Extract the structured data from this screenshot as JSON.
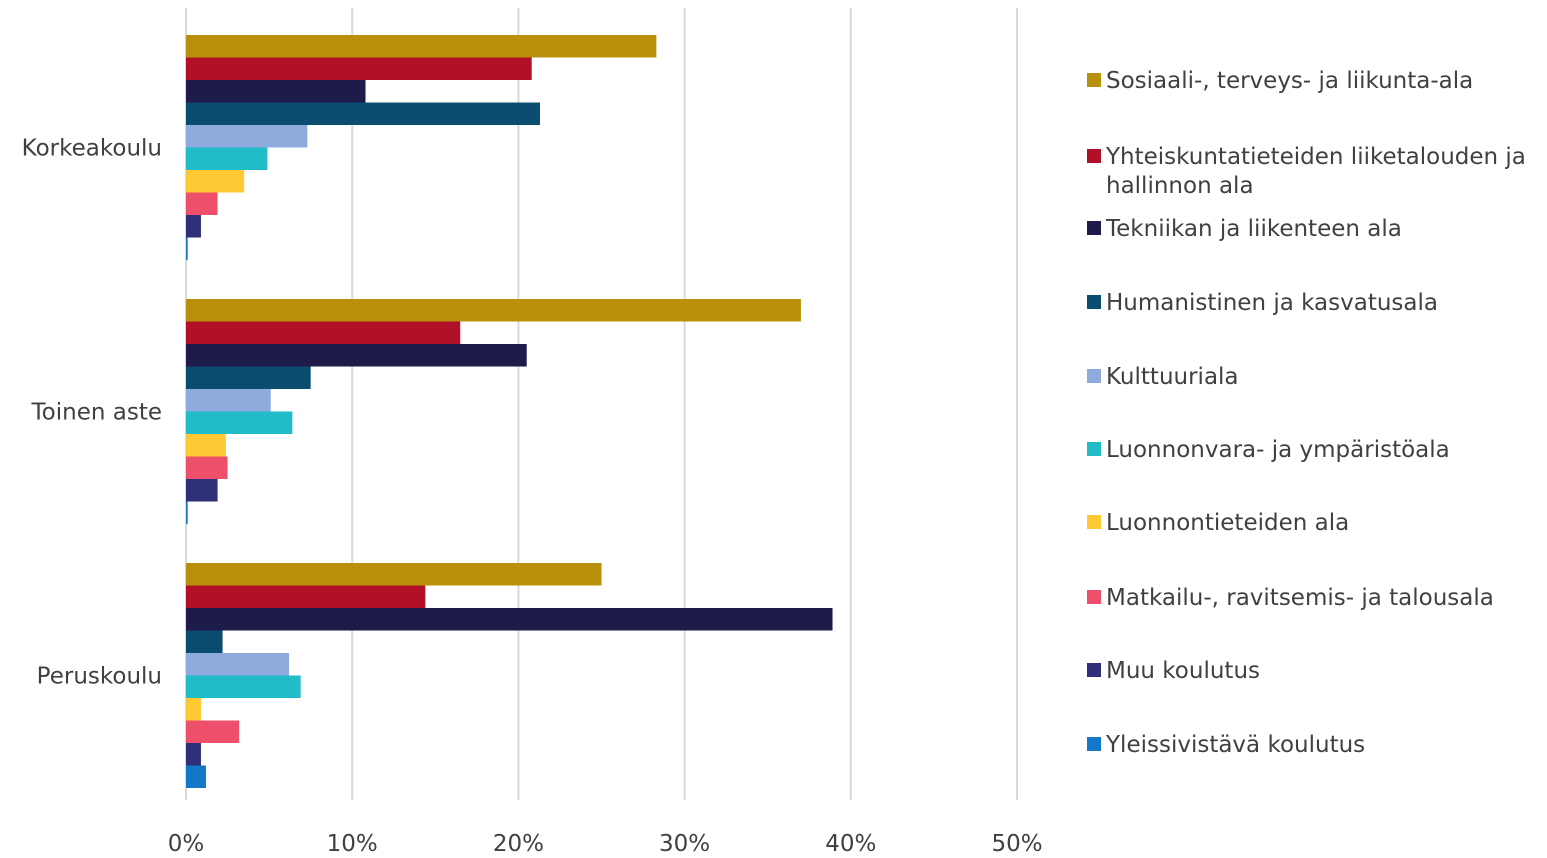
{
  "chart_data": {
    "type": "bar",
    "orientation": "horizontal",
    "categories": [
      "Korkeakoulu",
      "Toinen aste",
      "Peruskoulu"
    ],
    "series": [
      {
        "name": "Sosiaali-, terveys- ja liikunta-ala",
        "color": "#B8900A",
        "values": [
          28.3,
          37.0,
          25.0
        ]
      },
      {
        "name": "Yhteiskuntatieteiden liiketalouden ja hallinnon ala",
        "color": "#B01028",
        "values": [
          20.8,
          16.5,
          14.4
        ]
      },
      {
        "name": "Tekniikan ja liikenteen ala",
        "color": "#1E1A4A",
        "values": [
          10.8,
          20.5,
          38.9
        ]
      },
      {
        "name": "Humanistinen ja kasvatusala",
        "color": "#0A4D70",
        "values": [
          21.3,
          7.5,
          2.2
        ]
      },
      {
        "name": "Kulttuuriala",
        "color": "#8FAADC",
        "values": [
          7.3,
          5.1,
          6.2
        ]
      },
      {
        "name": "Luonnonvara- ja ympäristöala",
        "color": "#22BCC8",
        "values": [
          4.9,
          6.4,
          6.9
        ]
      },
      {
        "name": "Luonnontieteiden ala",
        "color": "#FFC934",
        "values": [
          3.5,
          2.4,
          0.9
        ]
      },
      {
        "name": "Matkailu-, ravitsemis- ja talousala",
        "color": "#EE4F6A",
        "values": [
          1.9,
          2.5,
          3.2
        ]
      },
      {
        "name": "Muu koulutus",
        "color": "#30307A",
        "values": [
          0.9,
          1.9,
          0.9
        ]
      },
      {
        "name": "Yleissivistävä koulutus",
        "color": "#1478C8",
        "values": [
          0.1,
          0.1,
          1.2
        ]
      }
    ],
    "x_axis": {
      "min": 0,
      "max": 50,
      "ticks": [
        0,
        10,
        20,
        30,
        40,
        50
      ],
      "tick_labels": [
        "0%",
        "10%",
        "20%",
        "30%",
        "40%",
        "50%"
      ]
    },
    "grid": true,
    "legend_position": "right"
  }
}
